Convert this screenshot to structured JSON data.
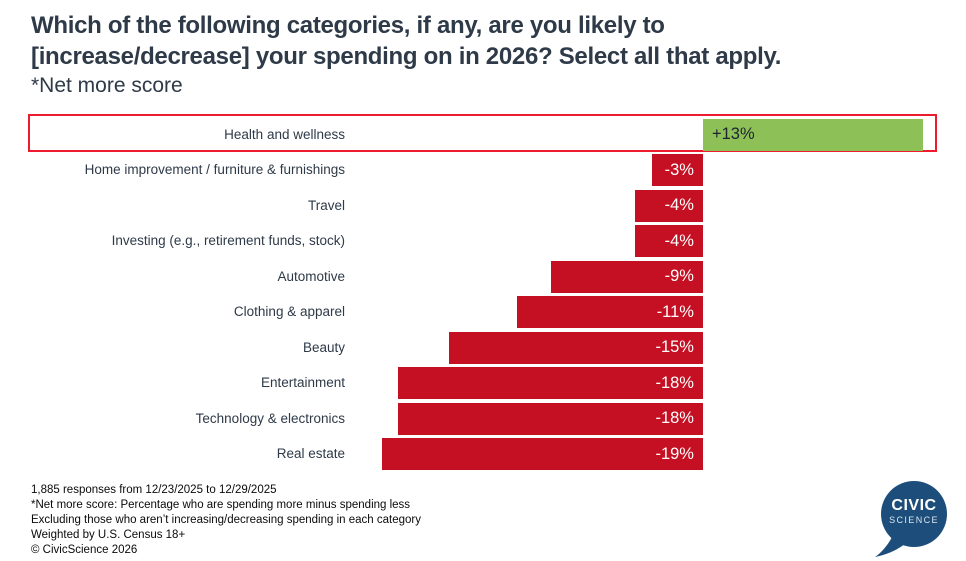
{
  "header": {
    "title_line1": "Which of the following categories, if any, are you likely to",
    "title_line2": "[increase/decrease] your spending on in 2026? Select all that apply.",
    "subtitle": "*Net more score"
  },
  "chart_data": {
    "type": "bar",
    "orientation": "horizontal",
    "title": "Which of the following categories, if any, are you likely to [increase/decrease] your spending on in 2026? Select all that apply.",
    "subtitle": "*Net more score",
    "categories": [
      "Health and wellness",
      "Home improvement / furniture & furnishings",
      "Travel",
      "Investing (e.g., retirement funds, stock)",
      "Automotive",
      "Clothing & apparel",
      "Beauty",
      "Entertainment",
      "Technology & electronics",
      "Real estate"
    ],
    "values": [
      13,
      -3,
      -4,
      -4,
      -9,
      -11,
      -15,
      -18,
      -18,
      -19
    ],
    "value_labels": [
      "+13%",
      "-3%",
      "-4%",
      "-4%",
      "-9%",
      "-11%",
      "-15%",
      "-18%",
      "-18%",
      "-19%"
    ],
    "highlighted_category": "Health and wellness",
    "positive_color": "#8dc157",
    "negative_color": "#c50f22",
    "highlight_border_color": "#ed1b2d",
    "xlim": [
      -19,
      13
    ],
    "grid": false,
    "legend": "none"
  },
  "footer": {
    "lines": [
      "1,885 responses from 12/23/2025 to 12/29/2025",
      "*Net more score: Percentage who are spending more minus spending less",
      "Excluding those who aren’t increasing/decreasing spending in each category",
      "Weighted by U.S. Census 18+",
      "© CivicScience 2026"
    ]
  },
  "logo": {
    "line1": "CIVIC",
    "line2": "SCIENCE",
    "bubble_color": "#1d4e7b"
  }
}
